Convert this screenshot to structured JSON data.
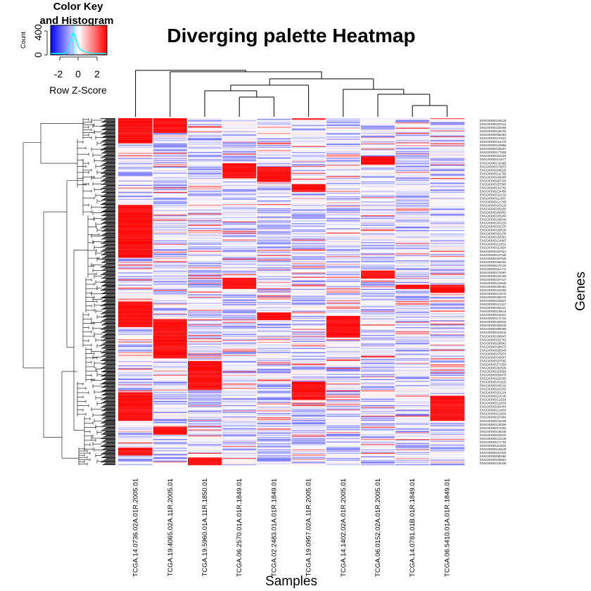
{
  "chart_data": {
    "type": "heatmap",
    "title": "Diverging palette Heatmap",
    "xlabel": "Samples",
    "ylabel": "Genes",
    "color_key": {
      "title_lines": [
        "Color Key",
        "and Histogram"
      ],
      "axis_label": "Row Z-Score",
      "count_label": "Count",
      "count_ticks": [
        "0",
        "400"
      ],
      "z_ticks": [
        "-2",
        "0",
        "2"
      ],
      "z_range": [
        -3,
        3
      ],
      "colors": {
        "low": "#0000ff",
        "mid": "#ffffff",
        "high": "#ff0000",
        "histogram": "#00ffff"
      }
    },
    "samples": [
      "TCGA.14.0736.02A.01R.2005.01",
      "TCGA.19.4065.02A.11R.2005.01",
      "TCGA.19.5960.01A.11R.1850.01",
      "TCGA.06.2570.01A.01R.1849.01",
      "TCGA.02.2483.01A.01R.1849.01",
      "TCGA.19.0957.02A.11R.2005.01",
      "TCGA.14.1402.02A.01R.2005.01",
      "TCGA.06.0152.02A.01R.2005.01",
      "TCGA.14.0781.01B.01R.1849.01",
      "TCGA.06.5410.01A.01R.1849.01"
    ],
    "genes": [
      "ENSG00000106128",
      "ENSG00000197614",
      "ENSG00000232098",
      "ENSG00000108700",
      "ENSG00000058453",
      "ENSG00000170421",
      "ENSG00000154478",
      "ENSG00000143869",
      "ENSG00000138207",
      "ENSG00000177508",
      "ENSG00000224184",
      "ENSG00000211677",
      "ENSG00000132465",
      "ENSG00000179873",
      "ENSG00000246528",
      "ENSG00000212765",
      "ENSG00000186493",
      "ENSG00000187200",
      "ENSG00000257580",
      "ENSG00000162792",
      "ENSG00000214456",
      "ENSG00000152132",
      "ENSG00000111087",
      "ENSG00000121769",
      "ENSG00000143125",
      "ENSG00000160180",
      "ENSG00000260852",
      "ENSG00000185290",
      "ENSG00000188540",
      "ENSG00000203229",
      "ENSG00000232370",
      "ENSG00000168530",
      "ENSG00000152230",
      "ENSG00000166391",
      "ENSG00000214807",
      "ENSG00000211632",
      "ENSG00000111664",
      "ENSG00000187621",
      "ENSG00000147345",
      "ENSG00000187848",
      "ENSG00000256261",
      "ENSG00000179134",
      "ENSG00000151711",
      "ENSG00000174697",
      "ENSG00000164400",
      "ENSG00000187417",
      "ENSG00000215840",
      "ENSG00000286481",
      "ENSG00000233208",
      "ENSG00000211670",
      "ENSG00000258274",
      "ENSG00000228627",
      "ENSG00000121317",
      "ENSG00000182111",
      "ENSG00000139514",
      "ENSG00000242021",
      "ENSG00000172722",
      "ENSG00000260043",
      "ENSG00000258518",
      "ENSG00000099399",
      "ENSG00000223515",
      "ENSG00000188847",
      "ENSG00000182762",
      "ENSG00000236081",
      "ENSG00000198573",
      "ENSG00000185840",
      "ENSG00000275874",
      "ENSG00000169507",
      "ENSG00000197582",
      "ENSG00000271584",
      "ENSG00000282539",
      "ENSG00000229654",
      "ENSG00000099479",
      "ENSG00000225560",
      "ENSG00000241825",
      "ENSG00000169132",
      "ENSG00000241832",
      "ENSG00000151224",
      "ENSG00000214146",
      "ENSG00000211059",
      "ENSG00000211650",
      "ENSG00000269404",
      "ENSG00000211663",
      "ENSG00000211660",
      "ENSG00000197864",
      "ENSG00000143196",
      "ENSG00000128258",
      "ENSG00000072292",
      "ENSG00000148346",
      "ENSG00000102970",
      "ENSG00000213139",
      "ENSG00000171724",
      "ENSG00000211592",
      "ENSG00000142549",
      "ENSG00000101825",
      "ENSG00000090560",
      "ENSG00000108821",
      "ENSG00000135436"
    ]
  }
}
